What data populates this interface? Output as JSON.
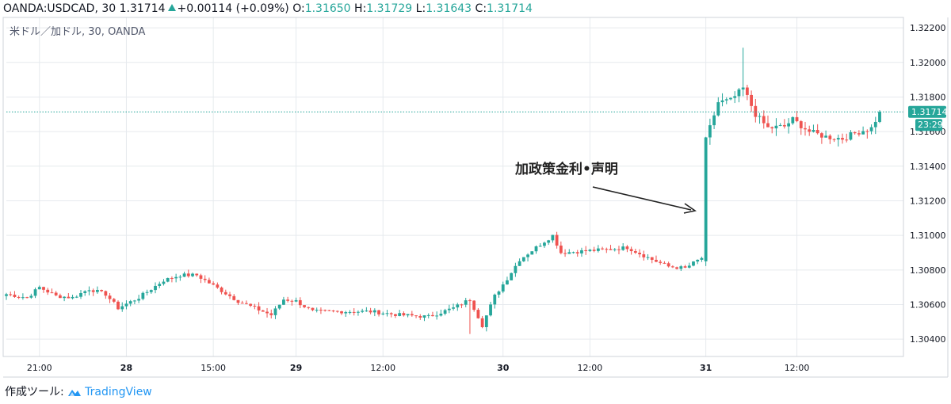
{
  "header": {
    "symbol": "OANDA:USDCAD, 30",
    "last": "1.31714",
    "change": "+0.00114 (+0.09%)",
    "o_label": "O:",
    "o_value": "1.31650",
    "h_label": "H:",
    "h_value": "1.31729",
    "l_label": "L:",
    "l_value": "1.31643",
    "c_label": "C:",
    "c_value": "1.31714"
  },
  "footer": {
    "made_with": "作成ツール:",
    "brand": "TradingView"
  },
  "colors": {
    "up": "#26a69a",
    "down": "#ef5350",
    "grid": "#e6eaee",
    "price_line": "#26a69a"
  },
  "chart_data": {
    "type": "candlestick",
    "title": "米ドル／加ドル, 30, OANDA",
    "xlabel": "",
    "ylabel": "",
    "ylim": [
      1.303,
      1.3226
    ],
    "y_ticks": [
      "1.32200",
      "1.32000",
      "1.31800",
      "1.31600",
      "1.31400",
      "1.31200",
      "1.31000",
      "1.30800",
      "1.30600",
      "1.30400"
    ],
    "x_ticks": [
      "21:00",
      "28",
      "15:00",
      "29",
      "12:00",
      "30",
      "12:00",
      "31",
      "12:00"
    ],
    "x_tick_bars": [
      8,
      29,
      50,
      70,
      91,
      120,
      141,
      169,
      191
    ],
    "current_price": "1.31714",
    "current_price_value": 1.31714,
    "countdown": "23:29",
    "annotation": "加政策金利•声明",
    "grid": true,
    "anchors": [
      [
        0,
        1.3066
      ],
      [
        5,
        1.3064
      ],
      [
        8,
        1.307
      ],
      [
        12,
        1.3065
      ],
      [
        16,
        1.3064
      ],
      [
        20,
        1.3069
      ],
      [
        24,
        1.3066
      ],
      [
        27,
        1.3058
      ],
      [
        32,
        1.3064
      ],
      [
        38,
        1.3074
      ],
      [
        42,
        1.3077
      ],
      [
        46,
        1.3077
      ],
      [
        52,
        1.3068
      ],
      [
        56,
        1.3062
      ],
      [
        60,
        1.3058
      ],
      [
        64,
        1.3054
      ],
      [
        67,
        1.3063
      ],
      [
        70,
        1.3062
      ],
      [
        74,
        1.3056
      ],
      [
        80,
        1.3056
      ],
      [
        88,
        1.3056
      ],
      [
        95,
        1.3054
      ],
      [
        102,
        1.3053
      ],
      [
        108,
        1.3058
      ],
      [
        112,
        1.3063
      ],
      [
        115,
        1.3048
      ],
      [
        118,
        1.3065
      ],
      [
        121,
        1.3075
      ],
      [
        124,
        1.3086
      ],
      [
        128,
        1.3093
      ],
      [
        132,
        1.31
      ],
      [
        134,
        1.309
      ],
      [
        140,
        1.3091
      ],
      [
        146,
        1.3092
      ],
      [
        150,
        1.3093
      ],
      [
        156,
        1.3086
      ],
      [
        160,
        1.3082
      ],
      [
        164,
        1.3081
      ],
      [
        168,
        1.3087
      ],
      [
        169,
        1.3155
      ],
      [
        172,
        1.3177
      ],
      [
        175,
        1.3178
      ],
      [
        178,
        1.3185
      ],
      [
        181,
        1.317
      ],
      [
        184,
        1.3162
      ],
      [
        188,
        1.3163
      ],
      [
        190,
        1.3167
      ],
      [
        194,
        1.316
      ],
      [
        198,
        1.3157
      ],
      [
        202,
        1.3156
      ],
      [
        206,
        1.316
      ],
      [
        209,
        1.3162
      ],
      [
        211,
        1.3171
      ]
    ]
  }
}
